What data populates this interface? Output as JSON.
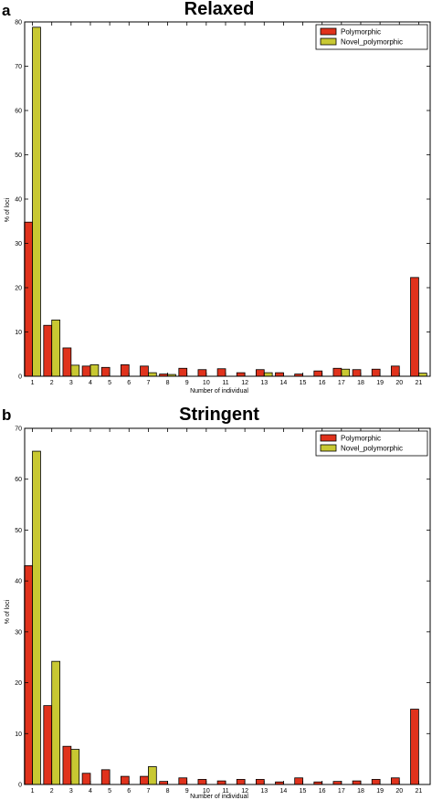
{
  "colors": {
    "polymorphic": "#e0321c",
    "novel_polymorphic": "#c8c832",
    "edge": "#000000"
  },
  "chart_data": [
    {
      "panel": "a",
      "type": "bar",
      "title": "Relaxed",
      "xlabel": "Number of individual",
      "ylabel": "% of loci",
      "ylim": [
        0,
        80
      ],
      "yticks": [
        0,
        10,
        20,
        30,
        40,
        50,
        60,
        70,
        80
      ],
      "categories": [
        "1",
        "2",
        "3",
        "4",
        "5",
        "6",
        "7",
        "8",
        "9",
        "10",
        "11",
        "12",
        "13",
        "14",
        "15",
        "16",
        "17",
        "18",
        "19",
        "20",
        "21"
      ],
      "legend_position": "top-right",
      "series": [
        {
          "name": "Polymorphic",
          "values": [
            34.8,
            11.5,
            6.4,
            2.3,
            2.0,
            2.6,
            2.3,
            0.5,
            1.8,
            1.5,
            1.7,
            0.8,
            1.5,
            0.8,
            0.5,
            1.2,
            1.8,
            1.5,
            1.6,
            2.3,
            22.3
          ]
        },
        {
          "name": "Novel_polymorphic",
          "values": [
            78.8,
            12.7,
            2.5,
            2.6,
            0,
            0,
            0.8,
            0.4,
            0,
            0,
            0,
            0,
            0.8,
            0,
            0,
            0,
            1.6,
            0,
            0,
            0,
            0.7
          ]
        }
      ]
    },
    {
      "panel": "b",
      "type": "bar",
      "title": "Stringent",
      "xlabel": "Number of individual",
      "ylabel": "% of loci",
      "ylim": [
        0,
        70
      ],
      "yticks": [
        0,
        10,
        20,
        30,
        40,
        50,
        60,
        70
      ],
      "categories": [
        "1",
        "2",
        "3",
        "4",
        "5",
        "6",
        "7",
        "8",
        "9",
        "10",
        "11",
        "12",
        "13",
        "14",
        "15",
        "16",
        "17",
        "18",
        "19",
        "20",
        "21"
      ],
      "legend_position": "top-right",
      "series": [
        {
          "name": "Polymorphic",
          "values": [
            43.0,
            15.5,
            7.5,
            2.2,
            2.9,
            1.6,
            1.6,
            0.6,
            1.3,
            1.0,
            0.7,
            1.0,
            1.0,
            0.5,
            1.3,
            0.5,
            0.6,
            0.7,
            1.0,
            1.3,
            14.8
          ]
        },
        {
          "name": "Novel_polymorphic",
          "values": [
            65.5,
            24.2,
            6.9,
            0,
            0,
            0,
            3.5,
            0,
            0,
            0,
            0,
            0,
            0,
            0,
            0,
            0,
            0,
            0,
            0,
            0,
            0
          ]
        }
      ]
    }
  ]
}
